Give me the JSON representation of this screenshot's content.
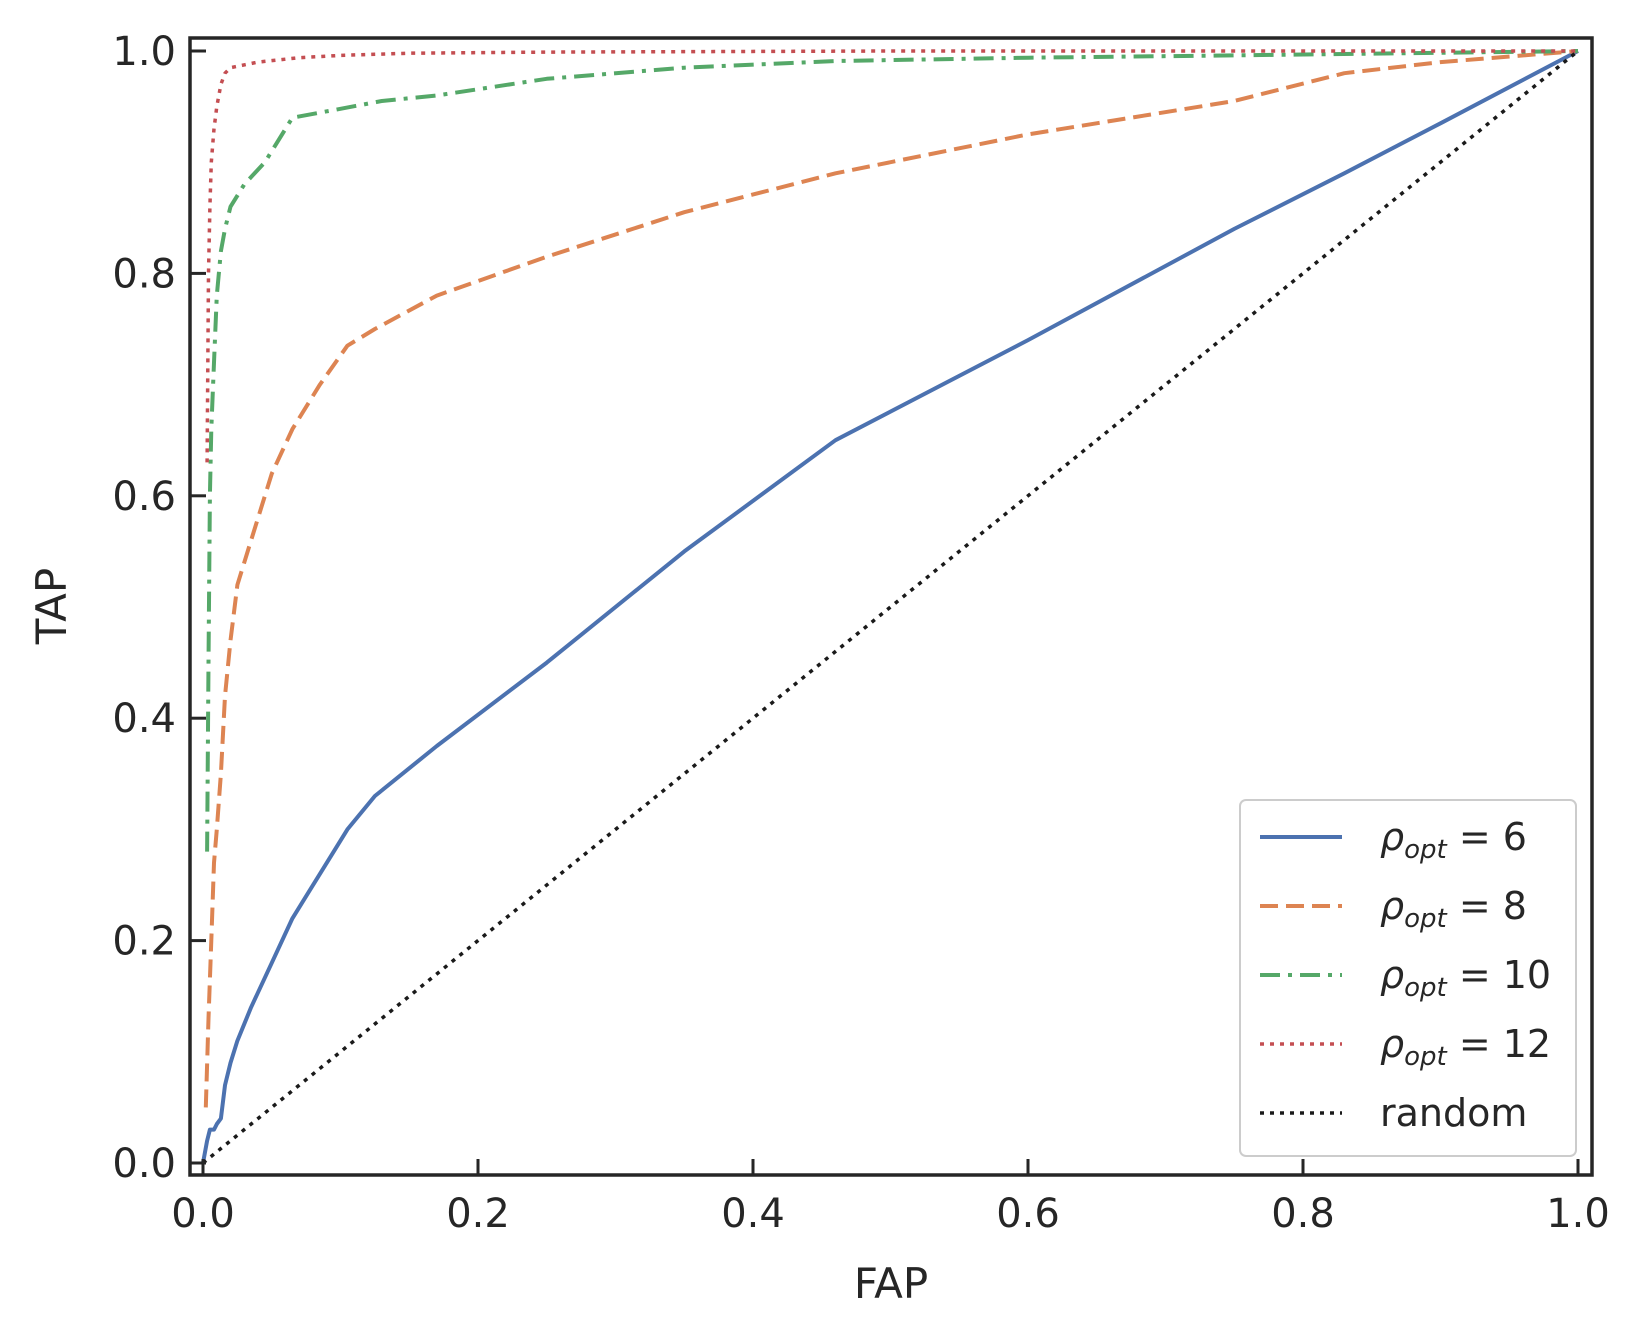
{
  "chart_data": {
    "type": "line",
    "xlabel": "FAP",
    "ylabel": "TAP",
    "xlim": [
      0.0,
      1.0
    ],
    "ylim": [
      0.0,
      1.0
    ],
    "xticks": [
      "0.0",
      "0.2",
      "0.4",
      "0.6",
      "0.8",
      "1.0"
    ],
    "yticks": [
      "0.0",
      "0.2",
      "0.4",
      "0.6",
      "0.8",
      "1.0"
    ],
    "grid": false,
    "legend_position": "bottom-right",
    "series": [
      {
        "name": "ρopt = 6",
        "legend": {
          "symbol": "ρ",
          "sub": "opt",
          "rest": " = 6"
        },
        "color": "#4c72b0",
        "dash": "solid",
        "x": [
          0.0,
          0.003,
          0.005,
          0.008,
          0.01,
          0.013,
          0.016,
          0.02,
          0.025,
          0.035,
          0.05,
          0.065,
          0.085,
          0.105,
          0.125,
          0.17,
          0.25,
          0.35,
          0.46,
          0.6,
          0.75,
          0.83,
          0.9,
          1.0
        ],
        "y": [
          0.0,
          0.02,
          0.03,
          0.03,
          0.035,
          0.04,
          0.07,
          0.09,
          0.11,
          0.14,
          0.18,
          0.22,
          0.26,
          0.3,
          0.33,
          0.375,
          0.45,
          0.55,
          0.65,
          0.74,
          0.84,
          0.89,
          0.935,
          1.0
        ]
      },
      {
        "name": "ρopt = 8",
        "legend": {
          "symbol": "ρ",
          "sub": "opt",
          "rest": " = 8"
        },
        "color": "#dd8452",
        "dash": "dashed",
        "x": [
          0.002,
          0.004,
          0.006,
          0.008,
          0.01,
          0.013,
          0.016,
          0.02,
          0.025,
          0.035,
          0.05,
          0.065,
          0.085,
          0.105,
          0.125,
          0.17,
          0.25,
          0.35,
          0.46,
          0.6,
          0.75,
          0.83,
          0.9,
          1.0
        ],
        "y": [
          0.05,
          0.13,
          0.2,
          0.27,
          0.3,
          0.35,
          0.42,
          0.47,
          0.52,
          0.56,
          0.62,
          0.66,
          0.7,
          0.735,
          0.75,
          0.78,
          0.815,
          0.855,
          0.89,
          0.925,
          0.955,
          0.98,
          0.99,
          1.0
        ]
      },
      {
        "name": "ρopt = 10",
        "legend": {
          "symbol": "ρ",
          "sub": "opt",
          "rest": " = 10"
        },
        "color": "#55a868",
        "dash": "dashdot",
        "x": [
          0.003,
          0.004,
          0.005,
          0.006,
          0.008,
          0.01,
          0.013,
          0.016,
          0.02,
          0.03,
          0.045,
          0.065,
          0.1,
          0.13,
          0.17,
          0.25,
          0.35,
          0.46,
          0.6,
          0.75,
          1.0
        ],
        "y": [
          0.28,
          0.45,
          0.6,
          0.66,
          0.72,
          0.78,
          0.82,
          0.84,
          0.86,
          0.88,
          0.9,
          0.94,
          0.948,
          0.955,
          0.96,
          0.975,
          0.985,
          0.991,
          0.994,
          0.996,
          1.0
        ]
      },
      {
        "name": "ρopt = 12",
        "legend": {
          "symbol": "ρ",
          "sub": "opt",
          "rest": " = 12"
        },
        "color": "#c44e52",
        "dash": "dotted",
        "x": [
          0.003,
          0.004,
          0.005,
          0.006,
          0.008,
          0.01,
          0.013,
          0.016,
          0.02,
          0.04,
          0.07,
          0.1,
          0.15,
          0.25,
          0.5,
          1.0
        ],
        "y": [
          0.63,
          0.8,
          0.86,
          0.9,
          0.93,
          0.95,
          0.97,
          0.98,
          0.985,
          0.99,
          0.994,
          0.996,
          0.998,
          0.999,
          1.0,
          1.0
        ]
      },
      {
        "name": "random",
        "legend": {
          "symbol": "",
          "sub": "",
          "rest": "random"
        },
        "color": "#1a1a1a",
        "dash": "dotted",
        "x": [
          0.0,
          1.0
        ],
        "y": [
          0.0,
          1.0
        ]
      }
    ]
  }
}
